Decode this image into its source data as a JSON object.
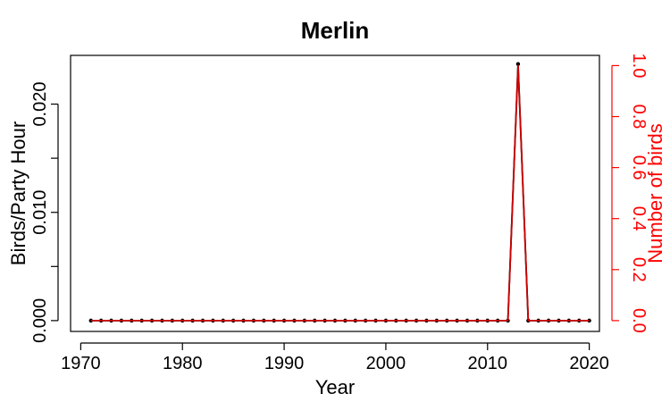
{
  "chart_data": {
    "type": "line",
    "title": "Merlin",
    "xlabel": "Year",
    "ylabel": "Birds/Party Hour",
    "y2label": "Number of birds",
    "xlim": [
      1969.0,
      2021.0
    ],
    "ylim": [
      -0.001,
      0.0245
    ],
    "y2lim": [
      -0.0424,
      1.04
    ],
    "xticks": [
      1970,
      1980,
      1990,
      2000,
      2010,
      2020
    ],
    "yticks": [
      0.0,
      0.005,
      0.01,
      0.015,
      0.02
    ],
    "ytick_labels": [
      "0.000",
      "",
      "0.010",
      "",
      "0.020"
    ],
    "y2ticks": [
      0.0,
      0.2,
      0.4,
      0.6,
      0.8,
      1.0
    ],
    "y2tick_labels": [
      "0.0",
      "0.2",
      "0.4",
      "0.6",
      "0.8",
      "1.0"
    ],
    "x": [
      1971,
      1972,
      1973,
      1974,
      1975,
      1976,
      1977,
      1978,
      1979,
      1980,
      1981,
      1982,
      1983,
      1984,
      1985,
      1986,
      1987,
      1988,
      1989,
      1990,
      1991,
      1992,
      1993,
      1994,
      1995,
      1996,
      1997,
      1998,
      1999,
      2000,
      2001,
      2002,
      2003,
      2004,
      2005,
      2006,
      2007,
      2008,
      2009,
      2010,
      2011,
      2012,
      2013,
      2014,
      2015,
      2016,
      2017,
      2018,
      2019,
      2020
    ],
    "series": [
      {
        "axis": "left",
        "color": "#000000",
        "marker": "point",
        "values": [
          0,
          0,
          0,
          0,
          0,
          0,
          0,
          0,
          0,
          0,
          0,
          0,
          0,
          0,
          0,
          0,
          0,
          0,
          0,
          0,
          0,
          0,
          0,
          0,
          0,
          0,
          0,
          0,
          0,
          0,
          0,
          0,
          0,
          0,
          0,
          0,
          0,
          0,
          0,
          0,
          0,
          0,
          0.0237,
          0,
          0,
          0,
          0,
          0,
          0,
          0
        ]
      },
      {
        "axis": "right",
        "color": "#cc0000",
        "marker": "none",
        "values": [
          0,
          0,
          0,
          0,
          0,
          0,
          0,
          0,
          0,
          0,
          0,
          0,
          0,
          0,
          0,
          0,
          0,
          0,
          0,
          0,
          0,
          0,
          0,
          0,
          0,
          0,
          0,
          0,
          0,
          0,
          0,
          0,
          0,
          0,
          0,
          0,
          0,
          0,
          0,
          0,
          0,
          0,
          1,
          0,
          0,
          0,
          0,
          0,
          0,
          0
        ]
      }
    ],
    "axis_color_right": "#ff0000",
    "grid": false,
    "legend": "none"
  }
}
